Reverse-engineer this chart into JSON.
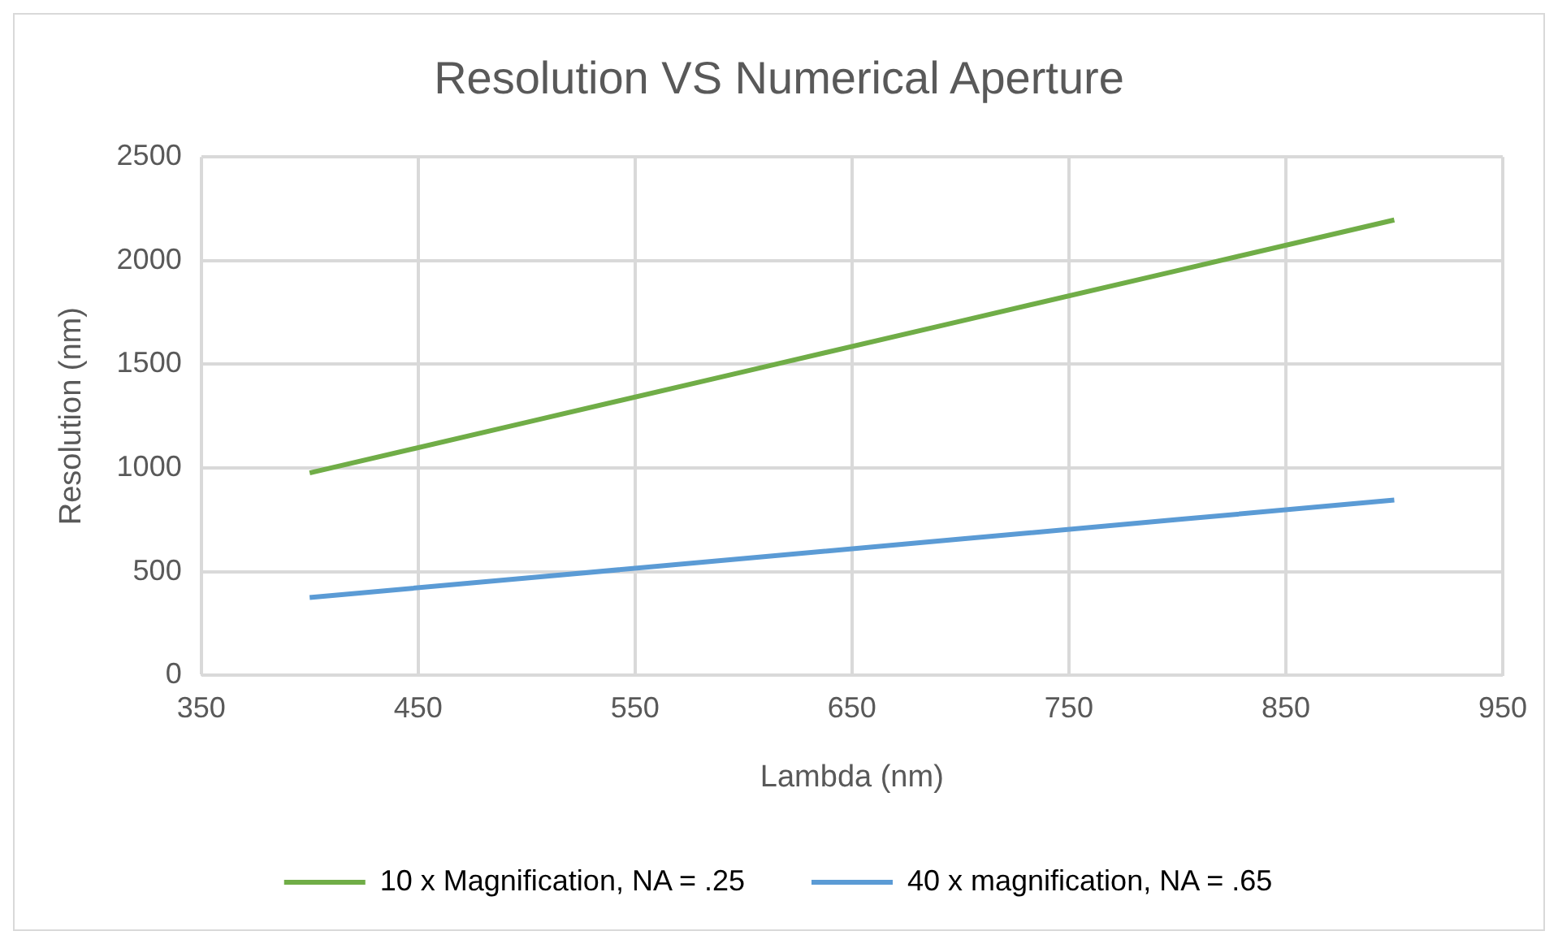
{
  "chart_data": {
    "type": "line",
    "title": "Resolution VS Numerical Aperture",
    "xlabel": "Lambda (nm)",
    "ylabel": "Resolution (nm)",
    "x": [
      400,
      500,
      600,
      700,
      800,
      900
    ],
    "series": [
      {
        "name": "10 x Magnification, NA = .25",
        "color": "#70ad47",
        "values": [
          976,
          1220,
          1464,
          1708,
          1952,
          2196
        ]
      },
      {
        "name": "40 x magnification, NA = .65",
        "color": "#5b9bd5",
        "values": [
          375,
          469,
          563,
          657,
          751,
          845
        ]
      }
    ],
    "xlim": [
      350,
      950
    ],
    "xticks": [
      350,
      450,
      550,
      650,
      750,
      850,
      950
    ],
    "ylim": [
      0,
      2500
    ],
    "yticks": [
      0,
      500,
      1000,
      1500,
      2000,
      2500
    ],
    "grid": true,
    "legend": "bottom",
    "marker": "none",
    "line_style": "solid"
  }
}
